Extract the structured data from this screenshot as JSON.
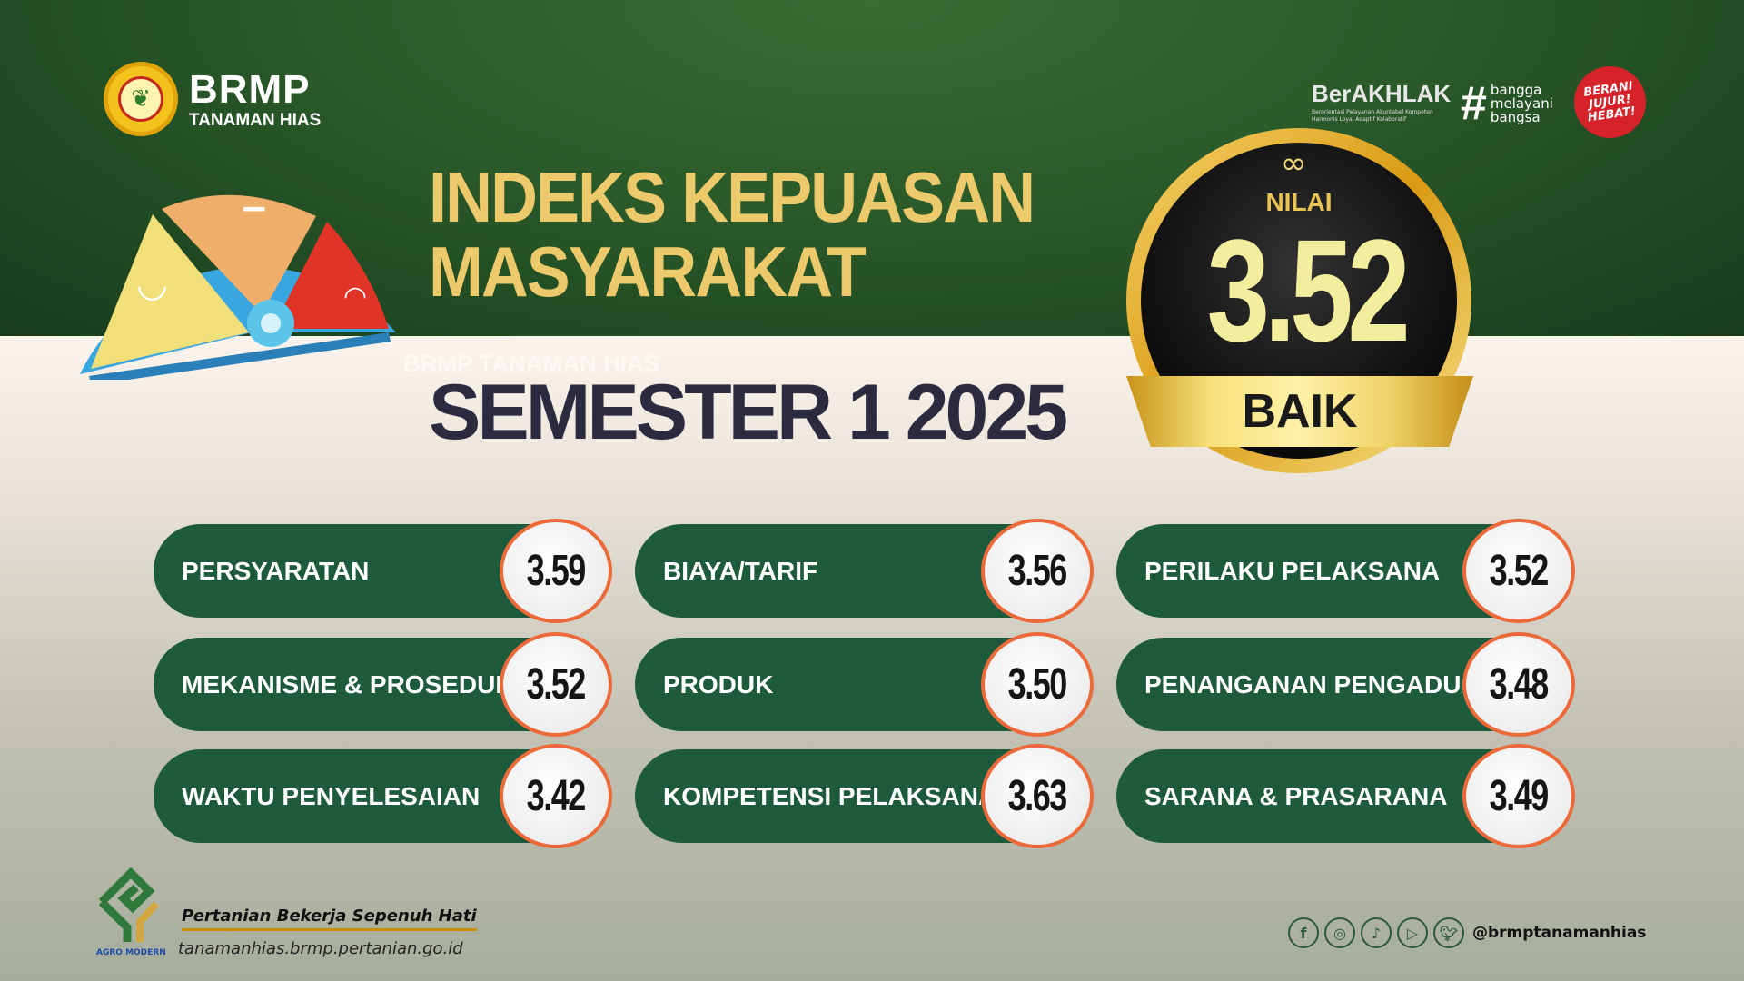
{
  "brand": {
    "name": "BRMP",
    "subtitle": "TANAMAN HIAS",
    "watermark": "BRMP TANAMAN HIAS"
  },
  "partner_logos": {
    "berakhlak": "BerAKHLAK",
    "berakhlak_tagline": "Berorientasi Pelayanan Akuntabel Kompeten Harmonis Loyal Adaptif Kolaboratif",
    "bangga_hash": "#",
    "bangga": [
      "bangga",
      "melayani",
      "bangsa"
    ],
    "berani": "BERANI JUJUR! HEBAT!"
  },
  "title": {
    "line1": "INDEKS KEPUASAN",
    "line2": "MASYARAKAT",
    "period": "SEMESTER 1 2025"
  },
  "badge": {
    "symbol": "∞",
    "label": "NILAI",
    "value": "3.52",
    "grade": "BAIK"
  },
  "indicators": [
    {
      "label": "PERSYARATAN",
      "value": "3.59"
    },
    {
      "label": "BIAYA/TARIF",
      "value": "3.56"
    },
    {
      "label": "PERILAKU PELAKSANA",
      "value": "3.52"
    },
    {
      "label": "MEKANISME & PROSEDUR",
      "value": "3.52"
    },
    {
      "label": "PRODUK",
      "value": "3.50"
    },
    {
      "label": "PENANGANAN PENGADUAN",
      "value": "3.48"
    },
    {
      "label": "WAKTU PENYELESAIAN",
      "value": "3.42"
    },
    {
      "label": "KOMPETENSI PELAKSANA",
      "value": "3.63"
    },
    {
      "label": "SARANA & PRASARANA",
      "value": "3.49"
    }
  ],
  "footer": {
    "agro": "AGRO MODERN",
    "slogan": "Pertanian Bekerja Sepenuh Hati",
    "url": "tanamanhias.brmp.pertanian.go.id",
    "handle": "@brmptanamanhias",
    "socials": [
      "facebook-icon",
      "instagram-icon",
      "tiktok-icon",
      "youtube-icon",
      "twitter-icon"
    ]
  },
  "colors": {
    "green": "#1e5a3c",
    "gold": "#ecc96a",
    "accent": "#ec6a3a"
  }
}
